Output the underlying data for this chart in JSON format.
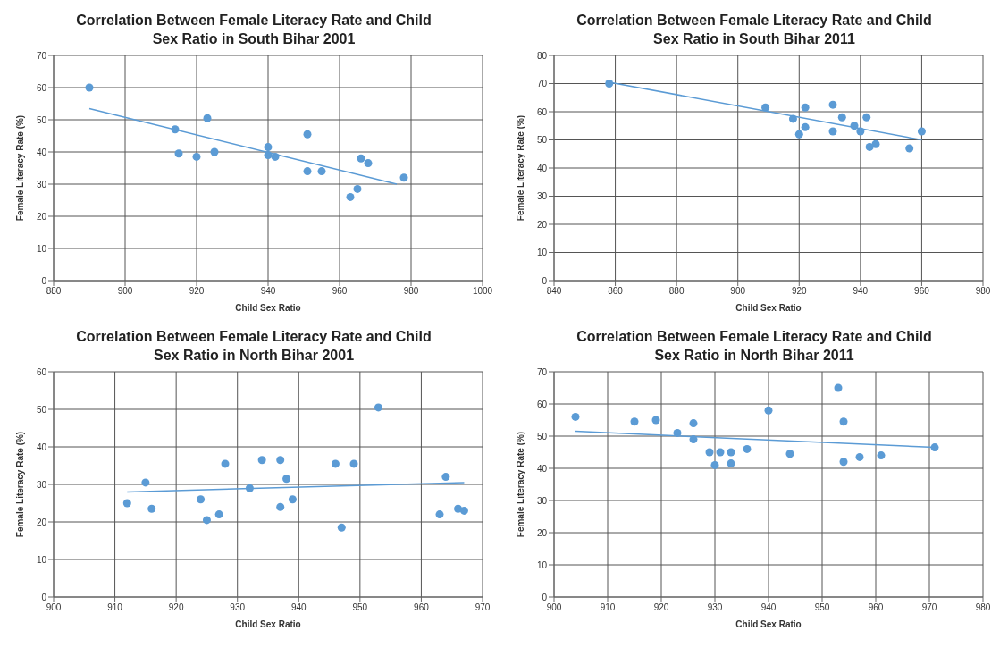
{
  "chart_data": [
    {
      "type": "scatter",
      "title": "Correlation Between Female Literacy Rate and Child Sex Ratio in South Bihar 2001",
      "xlabel": "Child Sex Ratio",
      "ylabel": "Female Literacy Rate (%)",
      "xlim": [
        880,
        1000
      ],
      "xticks": [
        880,
        900,
        920,
        940,
        960,
        980,
        1000
      ],
      "ylim": [
        0,
        70
      ],
      "yticks": [
        0,
        10,
        20,
        30,
        40,
        50,
        60,
        70
      ],
      "grid": true,
      "marker": "circle",
      "series": [
        {
          "type": "scatter",
          "color": "#5b9bd5",
          "x": [
            890,
            914,
            915,
            920,
            923,
            925,
            940,
            940,
            942,
            951,
            951,
            955,
            963,
            965,
            966,
            968,
            978
          ],
          "values": [
            60,
            47,
            39.5,
            38.5,
            50.5,
            40,
            41.5,
            39,
            38.5,
            45.5,
            34,
            34,
            26,
            28.5,
            38,
            36.5,
            32
          ]
        },
        {
          "type": "line",
          "color": "#5b9bd5",
          "marker": "none",
          "x": [
            890,
            976
          ],
          "values": [
            53.5,
            30
          ]
        }
      ]
    },
    {
      "type": "scatter",
      "title": "Correlation Between Female Literacy Rate and Child Sex Ratio in South Bihar 2011",
      "xlabel": "Child Sex Ratio",
      "ylabel": "Female Literacy Rate (%)",
      "xlim": [
        840,
        980
      ],
      "xticks": [
        840,
        860,
        880,
        900,
        920,
        940,
        960,
        980
      ],
      "ylim": [
        0,
        80
      ],
      "yticks": [
        0,
        10,
        20,
        30,
        40,
        50,
        60,
        70,
        80
      ],
      "grid": true,
      "marker": "circle",
      "series": [
        {
          "type": "scatter",
          "color": "#5b9bd5",
          "x": [
            858,
            909,
            918,
            920,
            922,
            922,
            931,
            931,
            934,
            938,
            940,
            942,
            943,
            945,
            956,
            960
          ],
          "values": [
            70,
            61.5,
            57.5,
            52,
            61.5,
            54.5,
            62.5,
            53,
            58,
            55,
            53,
            58,
            47.5,
            48.5,
            47,
            53
          ]
        },
        {
          "type": "line",
          "color": "#5b9bd5",
          "marker": "none",
          "x": [
            858,
            960
          ],
          "values": [
            70.5,
            50
          ]
        }
      ]
    },
    {
      "type": "scatter",
      "title": "Correlation Between Female Literacy Rate and Child Sex Ratio in North Bihar 2001",
      "xlabel": "Child Sex Ratio",
      "ylabel": "Female Literacy Rate (%)",
      "xlim": [
        900,
        970
      ],
      "xticks": [
        900,
        910,
        920,
        930,
        940,
        950,
        960,
        970
      ],
      "ylim": [
        0,
        60
      ],
      "yticks": [
        0,
        10,
        20,
        30,
        40,
        50,
        60
      ],
      "grid": true,
      "marker": "circle",
      "series": [
        {
          "type": "scatter",
          "color": "#5b9bd5",
          "x": [
            912,
            915,
            916,
            924,
            925,
            927,
            928,
            932,
            934,
            937,
            937,
            938,
            939,
            946,
            947,
            949,
            953,
            963,
            964,
            966,
            967
          ],
          "values": [
            25,
            30.5,
            23.5,
            26,
            20.5,
            22,
            35.5,
            29,
            36.5,
            36.5,
            24,
            31.5,
            26,
            35.5,
            18.5,
            35.5,
            50.5,
            22,
            32,
            23.5,
            23
          ]
        },
        {
          "type": "line",
          "color": "#5b9bd5",
          "marker": "none",
          "x": [
            912,
            967
          ],
          "values": [
            28,
            30.5
          ]
        }
      ]
    },
    {
      "type": "scatter",
      "title": "Correlation Between Female Literacy Rate and Child Sex Ratio in North Bihar 2011",
      "xlabel": "Child Sex Ratio",
      "ylabel": "Female Literacy Rate (%)",
      "xlim": [
        900,
        980
      ],
      "xticks": [
        900,
        910,
        920,
        930,
        940,
        950,
        960,
        970,
        980
      ],
      "ylim": [
        0,
        70
      ],
      "yticks": [
        0,
        10,
        20,
        30,
        40,
        50,
        60,
        70
      ],
      "grid": true,
      "marker": "circle",
      "series": [
        {
          "type": "scatter",
          "color": "#5b9bd5",
          "x": [
            904,
            915,
            919,
            923,
            926,
            926,
            929,
            930,
            931,
            933,
            933,
            936,
            940,
            944,
            953,
            954,
            954,
            957,
            961,
            971
          ],
          "values": [
            56,
            54.5,
            55,
            51,
            54,
            49,
            45,
            41,
            45,
            45,
            41.5,
            46,
            58,
            44.5,
            65,
            54.5,
            42,
            43.5,
            44,
            46.5
          ]
        },
        {
          "type": "line",
          "color": "#5b9bd5",
          "marker": "none",
          "x": [
            904,
            971
          ],
          "values": [
            51.5,
            46.5
          ]
        }
      ]
    }
  ]
}
